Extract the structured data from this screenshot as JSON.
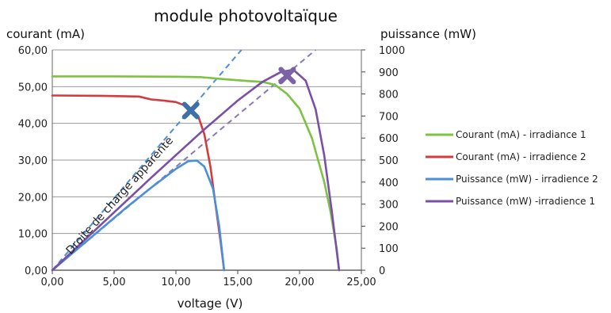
{
  "chart_data": {
    "type": "line",
    "title": "module photovoltaïque",
    "xlabel": "voltage (V)",
    "ylabel_left": "courant (mA)",
    "ylabel_right": "puissance (mW)",
    "xlim": [
      0,
      25
    ],
    "ylim_left": [
      0,
      60
    ],
    "ylim_right": [
      0,
      1000
    ],
    "x_ticks": [
      "0,00",
      "5,00",
      "10,00",
      "15,00",
      "20,00",
      "25,00"
    ],
    "y_left_ticks": [
      "0,00",
      "10,00",
      "20,00",
      "30,00",
      "40,00",
      "50,00",
      "60,00"
    ],
    "y_right_ticks": [
      "0",
      "100",
      "200",
      "300",
      "400",
      "500",
      "600",
      "700",
      "800",
      "900",
      "1000"
    ],
    "grid": true,
    "legend_position": "right",
    "series": [
      {
        "name": "Courant (mA) - irradiance 1",
        "axis": "left",
        "color": "#7dc242",
        "x": [
          0,
          5,
          10,
          12,
          14,
          16,
          17,
          18,
          19,
          20,
          21,
          22,
          22.5,
          23,
          23.2
        ],
        "y": [
          52.8,
          52.8,
          52.7,
          52.6,
          52.0,
          51.5,
          51.3,
          50.5,
          48,
          44,
          36,
          24,
          16,
          6,
          0
        ]
      },
      {
        "name": "Courant (mA) - irradience 2",
        "axis": "left",
        "color": "#d33c3c",
        "x": [
          0,
          4,
          7,
          8,
          9,
          10,
          11,
          11.8,
          12.3,
          12.8,
          13.2,
          13.6,
          13.9
        ],
        "y": [
          47.6,
          47.5,
          47.3,
          46.5,
          46.2,
          45.8,
          44.5,
          42,
          37,
          28,
          18,
          8,
          0
        ]
      },
      {
        "name": "Puissance (mW) - irradience 2",
        "axis": "right",
        "color": "#4a8fd8",
        "x": [
          0,
          2,
          4,
          6,
          8,
          10,
          11,
          11.7,
          12.3,
          13,
          13.5,
          13.9
        ],
        "y": [
          0,
          95,
          190,
          285,
          375,
          460,
          495,
          498,
          470,
          370,
          200,
          0
        ]
      },
      {
        "name": "Puissance (mW) -irradience 1",
        "axis": "right",
        "color": "#7b4fa8",
        "x": [
          0,
          4,
          8,
          12,
          15,
          17,
          18.5,
          19.5,
          20.5,
          21.3,
          22,
          22.6,
          23.2
        ],
        "y": [
          0,
          210,
          420,
          625,
          770,
          855,
          900,
          910,
          860,
          730,
          520,
          270,
          0
        ]
      }
    ],
    "reference_lines": [
      {
        "kind": "dashed-blue",
        "color": "#4a8fd8",
        "axis": "left",
        "x": [
          0,
          15.3
        ],
        "y": [
          0,
          60
        ]
      },
      {
        "kind": "dashed-purple",
        "color": "#8a78b8",
        "axis": "left",
        "x": [
          0,
          21.3
        ],
        "y": [
          0,
          60
        ]
      }
    ],
    "markers": [
      {
        "kind": "cross",
        "color": "#3e6fa8",
        "axis": "left",
        "x": 11.2,
        "y": 43.5
      },
      {
        "kind": "cross",
        "color": "#7b62a8",
        "axis": "left",
        "x": 19.0,
        "y": 53.0
      }
    ],
    "annotations": [
      {
        "text": "Droite de charge apparente",
        "x": 0.6,
        "y": 2.0,
        "angle_deg": -48
      }
    ]
  }
}
